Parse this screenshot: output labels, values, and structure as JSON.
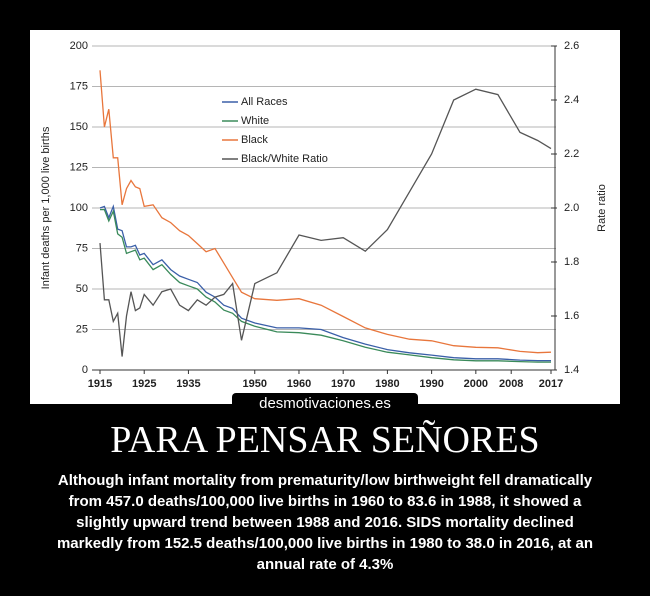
{
  "chart_data": {
    "type": "line",
    "ylabel": "Infant deaths per 1,000 live births",
    "y2label": "Rate ratio",
    "x": [
      1915,
      1916,
      1917,
      1918,
      1919,
      1920,
      1921,
      1922,
      1923,
      1924,
      1925,
      1927,
      1929,
      1931,
      1933,
      1935,
      1937,
      1939,
      1941,
      1943,
      1945,
      1947,
      1950,
      1955,
      1960,
      1965,
      1970,
      1975,
      1980,
      1985,
      1990,
      1995,
      2000,
      2005,
      2010,
      2014,
      2017
    ],
    "series": [
      {
        "name": "All Races",
        "color": "#3a5fa8",
        "values": [
          100,
          101,
          94,
          101,
          87,
          86,
          76,
          76,
          77,
          71,
          72,
          65,
          68,
          62,
          58,
          56,
          54,
          48,
          45,
          40,
          38,
          32,
          29,
          26,
          26,
          25,
          20,
          16,
          12.6,
          10.6,
          9.2,
          7.6,
          6.9,
          6.9,
          6.1,
          5.8,
          5.8
        ]
      },
      {
        "name": "White",
        "color": "#3a8a5a",
        "values": [
          99,
          99,
          92,
          98,
          84,
          82,
          72,
          73,
          74,
          68,
          69,
          62,
          65,
          59,
          54,
          52,
          50,
          45,
          42,
          37,
          35,
          30,
          27,
          23.5,
          23,
          21.5,
          18,
          14,
          11,
          9.3,
          7.6,
          6.3,
          5.7,
          5.7,
          5.2,
          4.9,
          4.9
        ]
      },
      {
        "name": "Black",
        "color": "#e8763c",
        "values": [
          185,
          150,
          161,
          131,
          131,
          102,
          112,
          117,
          113,
          112,
          101,
          102,
          94,
          91,
          86,
          83,
          78,
          73,
          75,
          66,
          57,
          48,
          44,
          43,
          44,
          40,
          33,
          26,
          22,
          19,
          18,
          15,
          14,
          13.7,
          11.5,
          10.7,
          11
        ]
      },
      {
        "name": "Black/White Ratio",
        "color": "#555555",
        "axis": "y2",
        "values": [
          1.87,
          1.66,
          1.66,
          1.58,
          1.61,
          1.45,
          1.6,
          1.69,
          1.62,
          1.63,
          1.68,
          1.64,
          1.69,
          1.7,
          1.64,
          1.62,
          1.66,
          1.64,
          1.67,
          1.68,
          1.72,
          1.51,
          1.72,
          1.76,
          1.9,
          1.88,
          1.89,
          1.84,
          1.92,
          2.06,
          2.2,
          2.4,
          2.44,
          2.42,
          2.28,
          2.25,
          2.22
        ]
      }
    ],
    "xlim": [
      1915,
      2017
    ],
    "xticks": [
      1915,
      1925,
      1935,
      1950,
      1960,
      1970,
      1980,
      1990,
      2000,
      2008,
      2017
    ],
    "ylim": [
      0,
      200
    ],
    "yticks": [
      0,
      25,
      50,
      75,
      100,
      125,
      150,
      175,
      200
    ],
    "y2lim": [
      1.4,
      2.6
    ],
    "y2ticks": [
      1.4,
      1.6,
      1.8,
      {
        "value": 2,
        "label": "2.0"
      },
      2.2,
      2.4,
      2.6
    ],
    "grid": true,
    "legend": "upper-center"
  },
  "poster": {
    "watermark": "desmotivaciones.es",
    "title": "PARA PENSAR SEÑORES",
    "caption": "Although infant mortality from prematurity/low birthweight fell dramatically from 457.0 deaths/100,000 live births in 1960 to 83.6 in 1988, it showed a slightly upward trend between 1988 and 2016. SIDS mortality declined markedly from 152.5 deaths/100,000 live births in 1980 to 38.0 in 2016, at an annual rate of 4.3%"
  }
}
